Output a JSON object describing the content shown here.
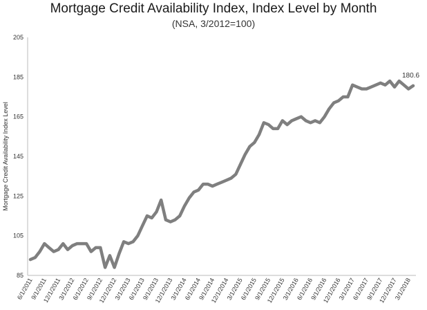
{
  "chart_data": {
    "type": "line",
    "title": "Mortgage Credit Availability Index, Index Level by Month",
    "subtitle": "(NSA, 3/2012=100)",
    "xlabel": "",
    "ylabel": "Mortgage Credit Availability Index Level",
    "ylim": [
      85,
      205
    ],
    "yticks": [
      85,
      105,
      125,
      145,
      165,
      185,
      205
    ],
    "grid": false,
    "legend": "none",
    "line_color": "#7f7f7f",
    "x_tick_labels": [
      "6/1/2011",
      "9/1/2011",
      "12/1/2011",
      "3/1/2012",
      "6/1/2012",
      "9/1/2012",
      "12/1/2012",
      "3/1/2013",
      "6/1/2013",
      "9/1/2013",
      "12/1/2013",
      "3/1/2014",
      "6/1/2014",
      "9/1/2014",
      "12/1/2014",
      "3/1/2015",
      "6/1/2015",
      "9/1/2015",
      "12/1/2015",
      "3/1/2016",
      "6/1/2016",
      "9/1/2016",
      "12/1/2016",
      "3/1/2017",
      "6/1/2017",
      "9/1/2017",
      "12/1/2017",
      "3/1/2018"
    ],
    "series": [
      {
        "name": "",
        "x": [
          "6/1/2011",
          "7/1/2011",
          "8/1/2011",
          "9/1/2011",
          "10/1/2011",
          "11/1/2011",
          "12/1/2011",
          "1/1/2012",
          "2/1/2012",
          "3/1/2012",
          "4/1/2012",
          "5/1/2012",
          "6/1/2012",
          "7/1/2012",
          "8/1/2012",
          "9/1/2012",
          "10/1/2012",
          "11/1/2012",
          "12/1/2012",
          "1/1/2013",
          "2/1/2013",
          "3/1/2013",
          "4/1/2013",
          "5/1/2013",
          "6/1/2013",
          "7/1/2013",
          "8/1/2013",
          "9/1/2013",
          "10/1/2013",
          "11/1/2013",
          "12/1/2013",
          "1/1/2014",
          "2/1/2014",
          "3/1/2014",
          "4/1/2014",
          "5/1/2014",
          "6/1/2014",
          "7/1/2014",
          "8/1/2014",
          "9/1/2014",
          "10/1/2014",
          "11/1/2014",
          "12/1/2014",
          "1/1/2015",
          "2/1/2015",
          "3/1/2015",
          "4/1/2015",
          "5/1/2015",
          "6/1/2015",
          "7/1/2015",
          "8/1/2015",
          "9/1/2015",
          "10/1/2015",
          "11/1/2015",
          "12/1/2015",
          "1/1/2016",
          "2/1/2016",
          "3/1/2016",
          "4/1/2016",
          "5/1/2016",
          "6/1/2016",
          "7/1/2016",
          "8/1/2016",
          "9/1/2016",
          "10/1/2016",
          "11/1/2016",
          "12/1/2016",
          "1/1/2017",
          "2/1/2017",
          "3/1/2017",
          "4/1/2017",
          "5/1/2017",
          "6/1/2017",
          "7/1/2017",
          "8/1/2017",
          "9/1/2017",
          "10/1/2017",
          "11/1/2017",
          "12/1/2017",
          "1/1/2018",
          "2/1/2018",
          "3/1/2018",
          "4/1/2018"
        ],
        "values": [
          93,
          94,
          97,
          101,
          99,
          97,
          98,
          101,
          98,
          100,
          101,
          101,
          101,
          97,
          99,
          99,
          89,
          95,
          89,
          96,
          102,
          101,
          102,
          105,
          110,
          115,
          114,
          117,
          123,
          113,
          112,
          113,
          115,
          120,
          124,
          127,
          128,
          131,
          131,
          130,
          131,
          132,
          133,
          134,
          136,
          141,
          146,
          150,
          152,
          156,
          162,
          161,
          159,
          159,
          163,
          161,
          163,
          164,
          165,
          163,
          162,
          163,
          162,
          165,
          169,
          172,
          173,
          175,
          175,
          181,
          180,
          179,
          179,
          180,
          181,
          182,
          181,
          183,
          180,
          183,
          181,
          179,
          180.6
        ]
      }
    ],
    "annotations": [
      {
        "text": "180.6"
      }
    ]
  }
}
